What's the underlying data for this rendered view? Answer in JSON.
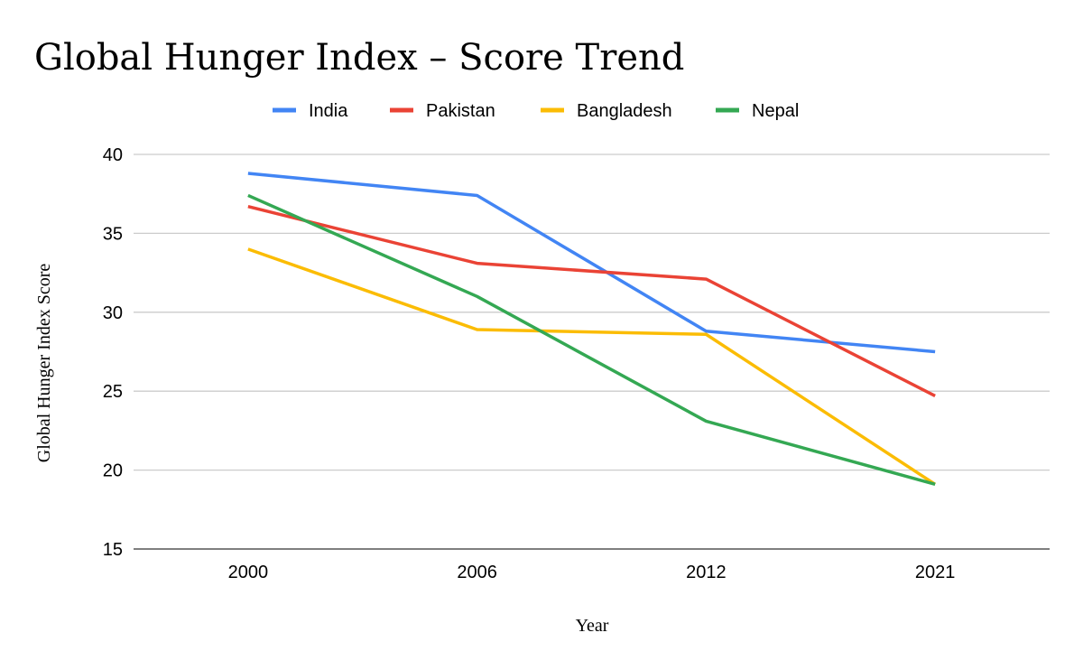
{
  "chart_data": {
    "type": "line",
    "title": "Global Hunger Index – Score Trend",
    "xlabel": "Year",
    "ylabel": "Global Hunger Index Score",
    "categories": [
      "2000",
      "2006",
      "2012",
      "2021"
    ],
    "ylim": [
      15,
      40
    ],
    "yticks": [
      "15",
      "20",
      "25",
      "30",
      "35",
      "40"
    ],
    "grid": true,
    "legend_position": "top",
    "series": [
      {
        "name": "India",
        "color": "#4285F4",
        "values": [
          38.8,
          37.4,
          28.8,
          27.5
        ]
      },
      {
        "name": "Pakistan",
        "color": "#EA4335",
        "values": [
          36.7,
          33.1,
          32.1,
          24.7
        ]
      },
      {
        "name": "Bangladesh",
        "color": "#FBBC04",
        "values": [
          34.0,
          28.9,
          28.6,
          19.1
        ]
      },
      {
        "name": "Nepal",
        "color": "#34A853",
        "values": [
          37.4,
          31.0,
          23.1,
          19.1
        ]
      }
    ]
  }
}
